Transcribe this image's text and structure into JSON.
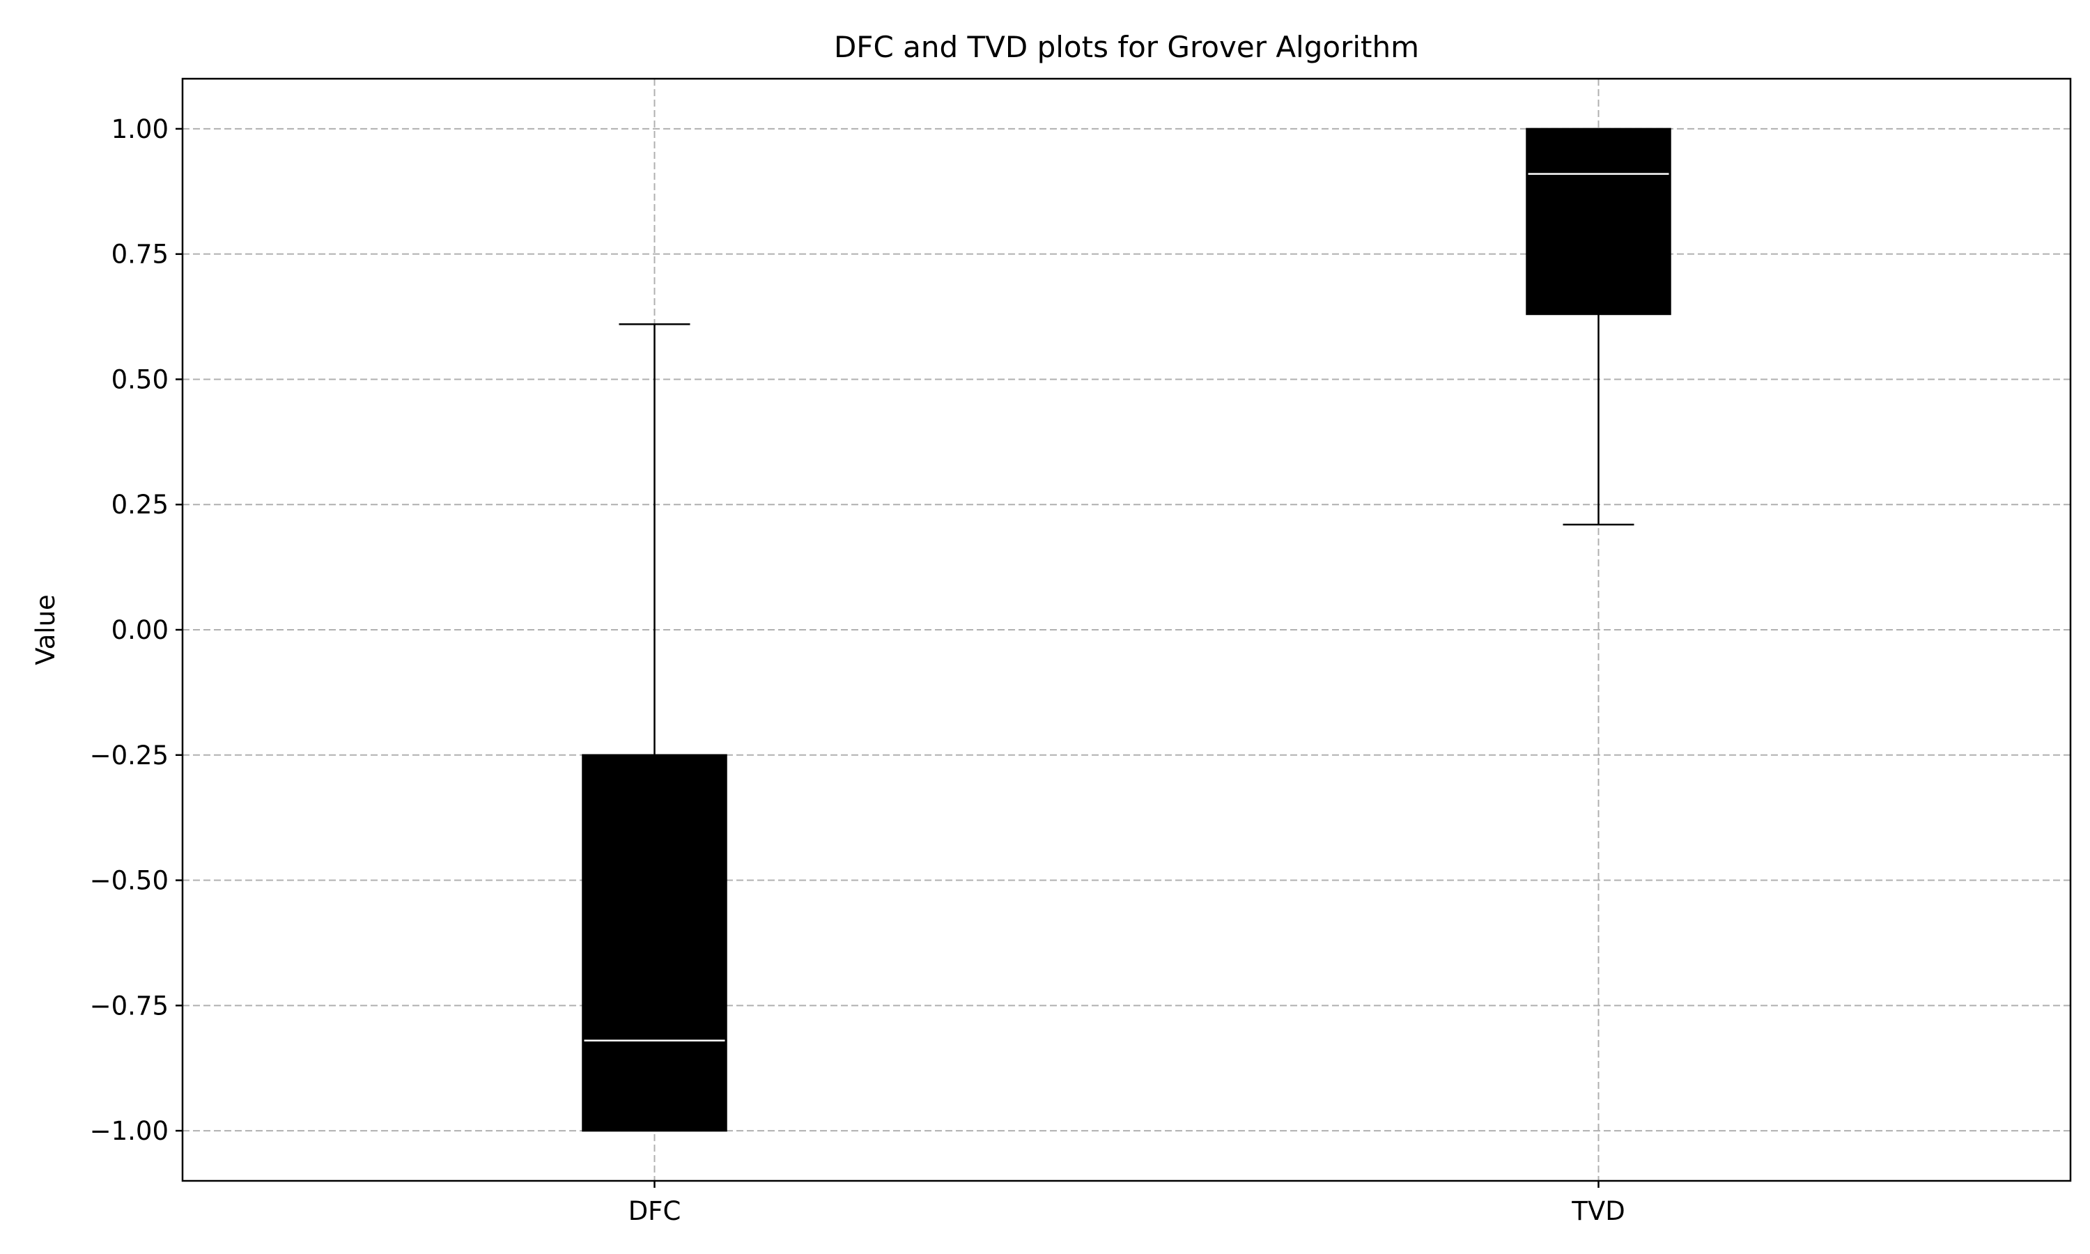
{
  "chart_data": {
    "type": "box",
    "title": "DFC and TVD plots for Grover Algorithm",
    "xlabel": "",
    "ylabel": "Value",
    "ylim": [
      -1.1,
      1.1
    ],
    "yticks": [
      1.0,
      0.75,
      0.5,
      0.25,
      0.0,
      -0.25,
      -0.5,
      -0.75,
      -1.0
    ],
    "ytick_labels": [
      "1.00",
      "0.75",
      "0.50",
      "0.25",
      "0.00",
      "−0.25",
      "−0.50",
      "−0.75",
      "−1.00"
    ],
    "grid": true,
    "categories": [
      "DFC",
      "TVD"
    ],
    "boxes": [
      {
        "label": "DFC",
        "whisker_low": -1.0,
        "q1": -1.0,
        "median": -0.82,
        "q3": -0.25,
        "whisker_high": 0.61
      },
      {
        "label": "TVD",
        "whisker_low": 0.21,
        "q1": 0.63,
        "median": 0.91,
        "q3": 1.0,
        "whisker_high": 1.0
      }
    ],
    "colors": {
      "box_fill": "#000000",
      "median_line": "#ffffff",
      "whisker": "#000000",
      "grid": "#b0b0b0"
    }
  }
}
